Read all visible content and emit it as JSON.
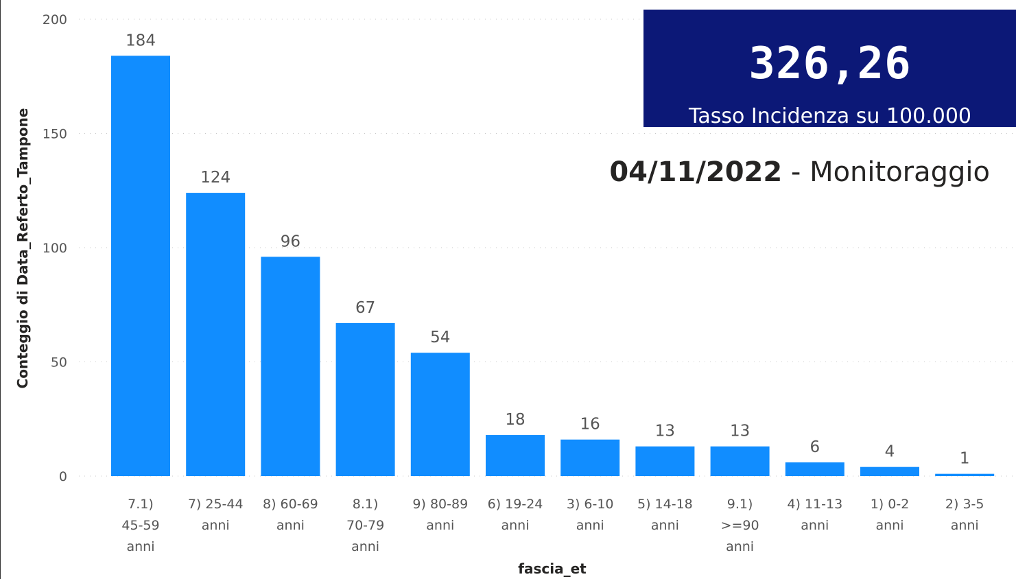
{
  "kpi": {
    "value": "326,26",
    "label": "Tasso Incidenza su 100.000"
  },
  "header": {
    "date": "04/11/2022",
    "suffix": " - Monitoraggio"
  },
  "chart_data": {
    "type": "bar",
    "xlabel": "fascia_et",
    "ylabel": "Conteggio di Data_Referto_Tampone",
    "ylim": [
      0,
      200
    ],
    "yticks": [
      0,
      50,
      100,
      150,
      200
    ],
    "grid": true,
    "bar_color": "#118dff",
    "categories": [
      "7.1) 45-59 anni",
      "7) 25-44 anni",
      "8) 60-69 anni",
      "8.1) 70-79 anni",
      "9) 80-89 anni",
      "6) 19-24 anni",
      "3) 6-10 anni",
      "5) 14-18 anni",
      "9.1) >=90 anni",
      "4) 11-13 anni",
      "1) 0-2 anni",
      "2) 3-5 anni"
    ],
    "category_lines": [
      [
        "7.1)",
        "45-59",
        "anni"
      ],
      [
        "7) 25-44",
        "anni"
      ],
      [
        "8) 60-69",
        "anni"
      ],
      [
        "8.1)",
        "70-79",
        "anni"
      ],
      [
        "9) 80-89",
        "anni"
      ],
      [
        "6) 19-24",
        "anni"
      ],
      [
        "3) 6-10",
        "anni"
      ],
      [
        "5) 14-18",
        "anni"
      ],
      [
        "9.1)",
        ">=90",
        "anni"
      ],
      [
        "4) 11-13",
        "anni"
      ],
      [
        "1) 0-2",
        "anni"
      ],
      [
        "2) 3-5",
        "anni"
      ]
    ],
    "values": [
      184,
      124,
      96,
      67,
      54,
      18,
      16,
      13,
      13,
      6,
      4,
      1
    ]
  }
}
